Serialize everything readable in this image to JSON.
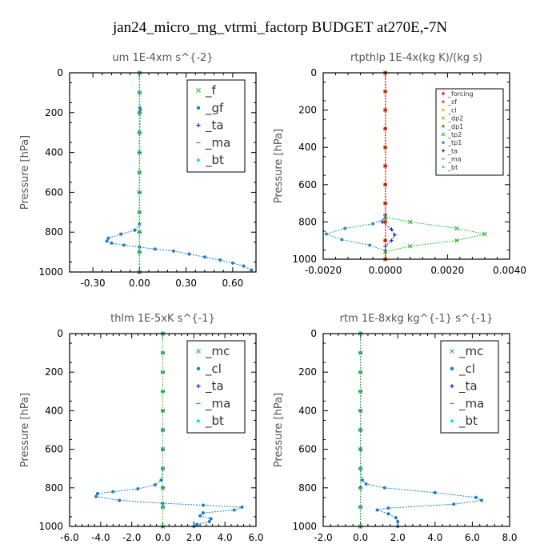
{
  "figure_title": "jan24_micro_mg_vtrmi_factorp  BUDGET at270E,-7N",
  "chart_data": [
    {
      "type": "line",
      "title": "um   1E-4xm s^{-2}",
      "ylabel": "Pressure [hPa]",
      "xlim": [
        -0.45,
        0.75
      ],
      "ylim": [
        0,
        1000
      ],
      "y_inverted": true,
      "x_ticks": [
        -0.3,
        0.0,
        0.3,
        0.6
      ],
      "x_tick_labels": [
        "-0.30",
        "0.00",
        "0.30",
        "0.60"
      ],
      "y_ticks": [
        0,
        200,
        400,
        600,
        800,
        1000
      ],
      "y_tick_labels": [
        "0",
        "200",
        "400",
        "600",
        "800",
        "1000"
      ],
      "legend_position": "top-right",
      "legend_size": "large",
      "series": [
        {
          "name": "_f",
          "color": "#3cc83c",
          "marker": "x",
          "x": [
            0,
            0,
            0,
            0,
            0,
            0,
            0,
            0,
            0,
            0,
            0
          ],
          "y": [
            0,
            100,
            200,
            300,
            400,
            500,
            600,
            700,
            800,
            900,
            1000
          ]
        },
        {
          "name": "_gf",
          "color": "#2080c8",
          "marker": "*",
          "x": [
            0.0,
            0.0,
            0.002,
            0.005,
            0.002,
            0.0,
            0.0,
            0.0,
            -0.03,
            -0.12,
            -0.2,
            -0.21,
            -0.18,
            -0.1,
            0.0,
            0.1,
            0.22,
            0.32,
            0.42,
            0.52,
            0.6,
            0.67,
            0.72
          ],
          "y": [
            0,
            100,
            175,
            185,
            300,
            500,
            700,
            760,
            790,
            810,
            830,
            845,
            855,
            865,
            875,
            885,
            895,
            910,
            925,
            940,
            955,
            970,
            990
          ]
        },
        {
          "name": "_ta",
          "color": "#2020d0",
          "marker": "+",
          "x": [
            0,
            0,
            0,
            0,
            0,
            0,
            0,
            0,
            0,
            0,
            0
          ],
          "y": [
            0,
            100,
            200,
            300,
            400,
            500,
            600,
            700,
            800,
            900,
            1000
          ]
        },
        {
          "name": "_ma",
          "color": "#20a0c0",
          "marker": "-",
          "x": [
            0,
            0,
            0,
            0,
            0,
            0,
            0,
            0,
            0,
            0,
            0
          ],
          "y": [
            0,
            100,
            200,
            300,
            400,
            500,
            600,
            700,
            800,
            900,
            1000
          ]
        },
        {
          "name": "_bt",
          "color": "#10e0e0",
          "marker": "diamond",
          "x": [
            0,
            0,
            0,
            0,
            0,
            0,
            0,
            0,
            0,
            0,
            0
          ],
          "y": [
            0,
            100,
            200,
            300,
            400,
            500,
            600,
            700,
            800,
            900,
            1000
          ]
        }
      ]
    },
    {
      "type": "line",
      "title": "rtpthlp   1E-4x(kg K)/(kg s)",
      "ylabel": "Pressure [hPa]",
      "xlim": [
        -0.002,
        0.004
      ],
      "ylim": [
        0,
        1000
      ],
      "y_inverted": true,
      "x_ticks": [
        -0.002,
        0.0,
        0.002,
        0.004
      ],
      "x_tick_labels": [
        "-0.0020",
        "0.0000",
        "0.0020",
        "0.0040"
      ],
      "y_ticks": [
        0,
        200,
        400,
        600,
        800,
        1000
      ],
      "y_tick_labels": [
        "0",
        "200",
        "400",
        "600",
        "800",
        "1000"
      ],
      "legend_position": "top-right",
      "legend_size": "small",
      "series": [
        {
          "name": "_forcing",
          "color": "#d02020",
          "marker": "*",
          "x": [
            0,
            0,
            0,
            0,
            0,
            0,
            0,
            0,
            0,
            0,
            0
          ],
          "y": [
            0,
            100,
            200,
            300,
            400,
            500,
            600,
            700,
            800,
            900,
            1000
          ]
        },
        {
          "name": "_sf",
          "color": "#e03020",
          "marker": "+",
          "x": [
            0,
            0,
            0,
            0,
            0,
            0,
            0,
            0,
            0,
            0,
            0
          ],
          "y": [
            0,
            100,
            200,
            300,
            400,
            500,
            600,
            700,
            800,
            900,
            1000
          ]
        },
        {
          "name": "_cl",
          "color": "#e0c020",
          "marker": "*",
          "x": [
            0,
            0,
            0,
            0,
            0,
            0,
            0,
            0,
            0,
            0,
            0
          ],
          "y": [
            0,
            100,
            200,
            300,
            400,
            500,
            600,
            700,
            800,
            900,
            1000
          ]
        },
        {
          "name": "_dp2",
          "color": "#c0c020",
          "marker": "x",
          "x": [
            0,
            0,
            0,
            0,
            0,
            0,
            0,
            0,
            0,
            0,
            0
          ],
          "y": [
            0,
            100,
            200,
            300,
            400,
            500,
            600,
            700,
            800,
            900,
            1000
          ]
        },
        {
          "name": "_dp1",
          "color": "#30a030",
          "marker": "*",
          "x": [
            0,
            0,
            0,
            0,
            0,
            0,
            0,
            0,
            0,
            0,
            0
          ],
          "y": [
            0,
            100,
            200,
            300,
            400,
            500,
            600,
            700,
            800,
            900,
            1000
          ]
        },
        {
          "name": "_tp2",
          "color": "#30c030",
          "marker": "x",
          "x": [
            0.0,
            0.0,
            0.0,
            0.0008,
            0.0023,
            0.0032,
            0.0023,
            0.0008,
            0.0,
            0.0
          ],
          "y": [
            0,
            700,
            775,
            800,
            835,
            865,
            900,
            930,
            960,
            1000
          ]
        },
        {
          "name": "_tp1",
          "color": "#3090c0",
          "marker": "*",
          "x": [
            0.0,
            0.0,
            -0.0004,
            -0.0013,
            -0.0019,
            -0.0014,
            -0.0005,
            0.0,
            0.0
          ],
          "y": [
            0,
            780,
            810,
            835,
            865,
            895,
            925,
            955,
            1000
          ]
        },
        {
          "name": "_ta",
          "color": "#2020d0",
          "marker": "+",
          "x": [
            0.0,
            0.0,
            -0.0001,
            0.0002,
            0.0003,
            0.0002,
            0.0,
            0.0
          ],
          "y": [
            0,
            760,
            800,
            840,
            870,
            900,
            930,
            1000
          ]
        },
        {
          "name": "_ma",
          "color": "#20a0c0",
          "marker": "-",
          "x": [
            0,
            0,
            0,
            0,
            0,
            0,
            0,
            0,
            0,
            0,
            0
          ],
          "y": [
            0,
            100,
            200,
            300,
            400,
            500,
            600,
            700,
            800,
            900,
            1000
          ]
        },
        {
          "name": "_bt",
          "color": "#10e0e0",
          "marker": "diamond",
          "x": [
            0,
            0,
            0,
            0,
            0,
            0,
            0,
            0,
            0,
            0,
            0
          ],
          "y": [
            0,
            100,
            200,
            300,
            400,
            500,
            600,
            700,
            800,
            900,
            1000
          ]
        }
      ]
    },
    {
      "type": "line",
      "title": "thlm   1E-5xK s^{-1}",
      "ylabel": "Pressure [hPa]",
      "xlim": [
        -6.0,
        6.0
      ],
      "ylim": [
        0,
        1000
      ],
      "y_inverted": true,
      "x_ticks": [
        -6,
        -4,
        -2,
        0,
        2,
        4,
        6
      ],
      "x_tick_labels": [
        "-6.0",
        "-4.0",
        "-2.0",
        "0.0",
        "2.0",
        "4.0",
        "6.0"
      ],
      "y_ticks": [
        0,
        200,
        400,
        600,
        800,
        1000
      ],
      "y_tick_labels": [
        "0",
        "200",
        "400",
        "600",
        "800",
        "1000"
      ],
      "legend_position": "top-right",
      "legend_size": "large",
      "series": [
        {
          "name": "_mc",
          "color": "#3cc83c",
          "marker": "x",
          "x": [
            0,
            0,
            0,
            0,
            0,
            0,
            0,
            0,
            0,
            0,
            0
          ],
          "y": [
            0,
            100,
            200,
            300,
            400,
            500,
            600,
            700,
            800,
            900,
            1000
          ]
        },
        {
          "name": "_cl",
          "color": "#2080c8",
          "marker": "*",
          "x": [
            0.0,
            0.0,
            -0.1,
            -0.5,
            -1.6,
            -3.2,
            -4.2,
            -4.3,
            -2.8,
            0.0,
            2.6,
            5.1,
            4.6,
            2.6,
            2.4,
            3.1,
            3.0,
            2.2,
            2.0
          ],
          "y": [
            0,
            700,
            760,
            785,
            805,
            820,
            830,
            845,
            865,
            880,
            890,
            900,
            915,
            930,
            945,
            960,
            975,
            990,
            1000
          ]
        },
        {
          "name": "_ta",
          "color": "#2020d0",
          "marker": "+",
          "x": [
            0,
            0,
            0,
            0,
            0,
            0,
            0,
            0,
            0,
            0,
            0
          ],
          "y": [
            0,
            100,
            200,
            300,
            400,
            500,
            600,
            700,
            800,
            900,
            1000
          ]
        },
        {
          "name": "_ma",
          "color": "#20a0c0",
          "marker": "-",
          "x": [
            0,
            0,
            0,
            0,
            0,
            0,
            0,
            0,
            0,
            0,
            0
          ],
          "y": [
            0,
            100,
            200,
            300,
            400,
            500,
            600,
            700,
            800,
            900,
            1000
          ]
        },
        {
          "name": "_bt",
          "color": "#10e0e0",
          "marker": "diamond",
          "x": [
            0,
            0,
            0,
            0,
            0,
            0,
            0,
            0,
            0,
            0,
            0
          ],
          "y": [
            0,
            100,
            200,
            300,
            400,
            500,
            600,
            700,
            800,
            900,
            1000
          ]
        }
      ]
    },
    {
      "type": "line",
      "title": "rtm   1E-8xkg kg^{-1} s^{-1}",
      "ylabel": "Pressure [hPa]",
      "xlim": [
        -2.0,
        8.0
      ],
      "ylim": [
        0,
        1000
      ],
      "y_inverted": true,
      "x_ticks": [
        -2,
        0,
        2,
        4,
        6,
        8
      ],
      "x_tick_labels": [
        "-2.0",
        "0.0",
        "2.0",
        "4.0",
        "6.0",
        "8.0"
      ],
      "y_ticks": [
        0,
        200,
        400,
        600,
        800,
        1000
      ],
      "y_tick_labels": [
        "0",
        "200",
        "400",
        "600",
        "800",
        "1000"
      ],
      "legend_position": "top-right",
      "legend_size": "large",
      "series": [
        {
          "name": "_mc",
          "color": "#3cc83c",
          "marker": "x",
          "x": [
            0,
            0,
            0,
            0,
            0,
            0,
            0,
            0,
            0,
            0,
            0
          ],
          "y": [
            0,
            100,
            200,
            300,
            400,
            500,
            600,
            700,
            800,
            900,
            1000
          ]
        },
        {
          "name": "_cl",
          "color": "#2080c8",
          "marker": "*",
          "x": [
            0.0,
            0.0,
            0.1,
            0.3,
            1.3,
            4.0,
            6.2,
            6.5,
            5.0,
            1.5,
            0.9,
            1.5,
            1.9,
            2.0,
            2.0
          ],
          "y": [
            0,
            700,
            760,
            780,
            800,
            825,
            850,
            865,
            885,
            905,
            915,
            935,
            955,
            975,
            1000
          ]
        },
        {
          "name": "_ta",
          "color": "#2020d0",
          "marker": "+",
          "x": [
            0,
            0,
            0,
            0,
            0,
            0,
            0,
            0,
            0,
            0,
            0
          ],
          "y": [
            0,
            100,
            200,
            300,
            400,
            500,
            600,
            700,
            800,
            900,
            1000
          ]
        },
        {
          "name": "_ma",
          "color": "#20a0c0",
          "marker": "-",
          "x": [
            0,
            0,
            0,
            0,
            0,
            0,
            0,
            0,
            0,
            0,
            0
          ],
          "y": [
            0,
            100,
            200,
            300,
            400,
            500,
            600,
            700,
            800,
            900,
            1000
          ]
        },
        {
          "name": "_bt",
          "color": "#10e0e0",
          "marker": "diamond",
          "x": [
            0,
            0,
            0,
            0,
            0,
            0,
            0,
            0,
            0,
            0,
            0
          ],
          "y": [
            0,
            100,
            200,
            300,
            400,
            500,
            600,
            700,
            800,
            900,
            1000
          ]
        }
      ]
    }
  ]
}
